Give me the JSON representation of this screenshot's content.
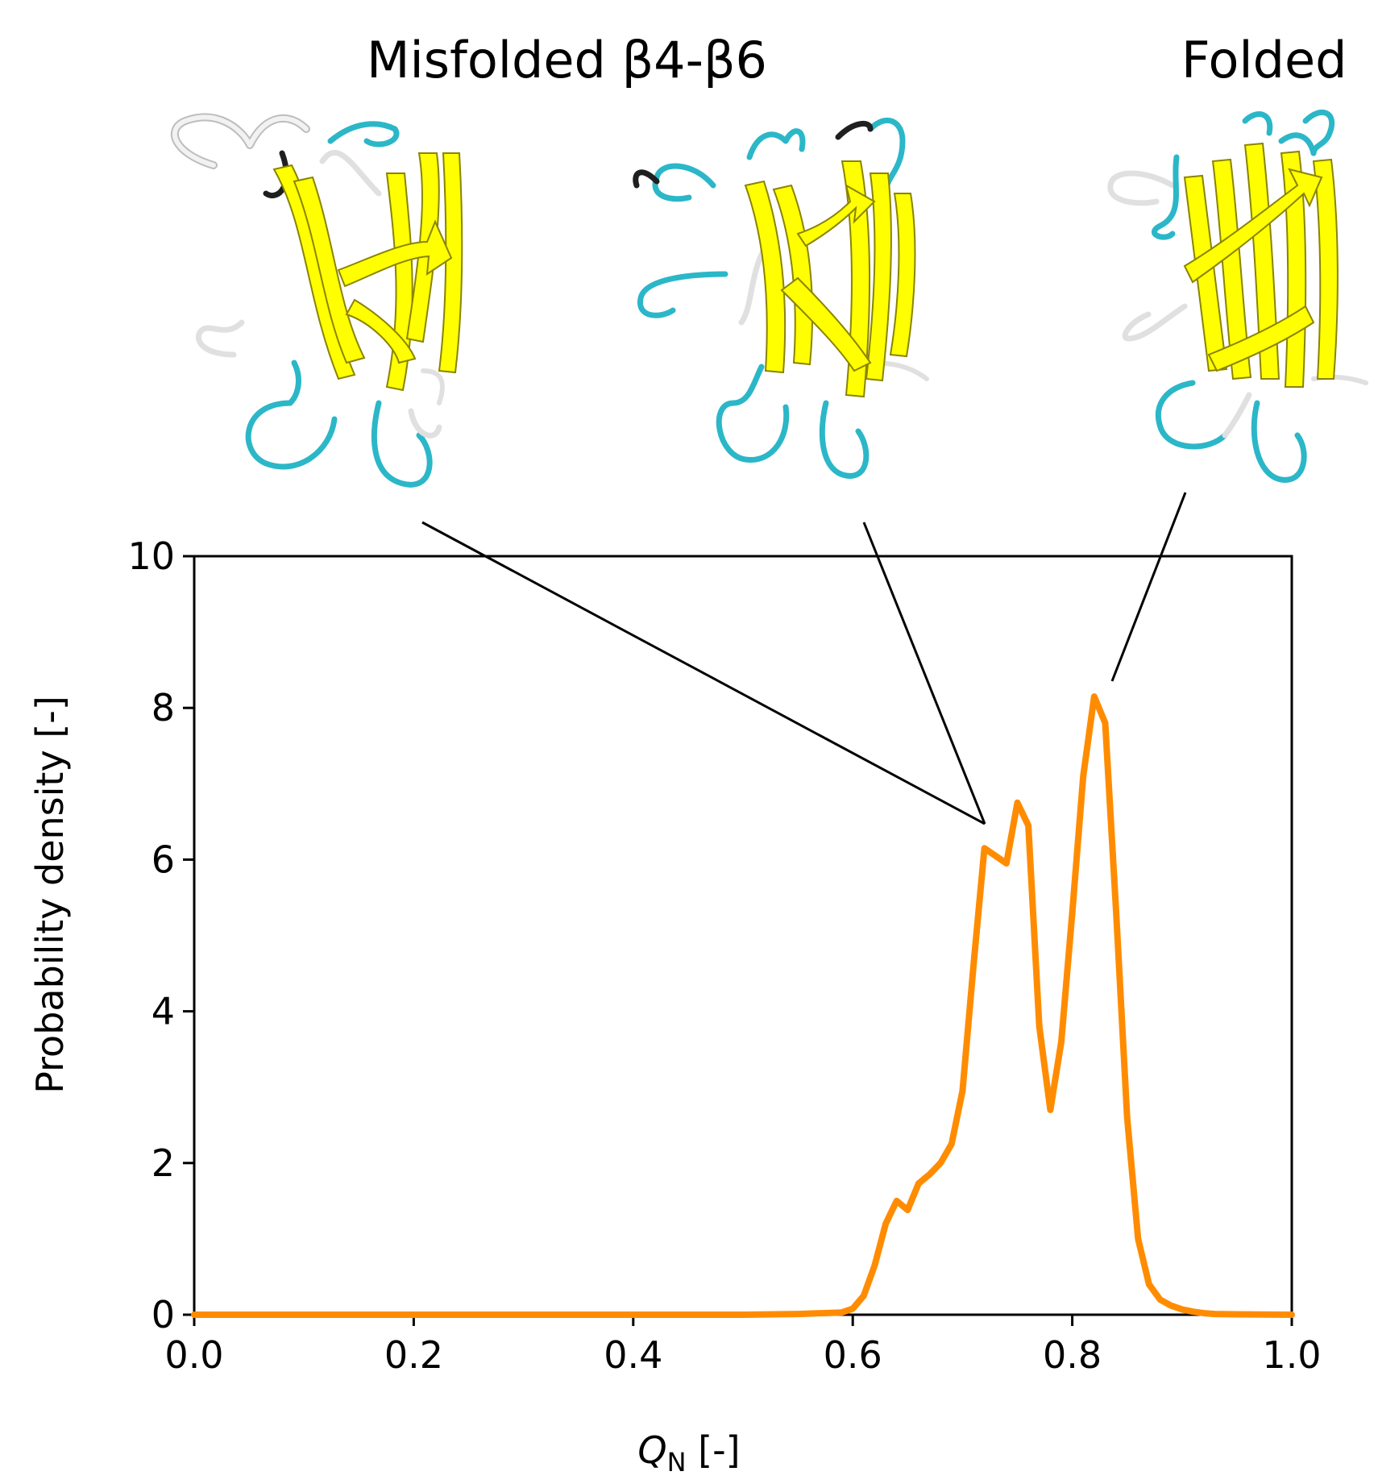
{
  "annotations": {
    "misfolded_label": "Misfolded β4-β6",
    "folded_label": "Folded"
  },
  "colors": {
    "curve": "#ff8c00",
    "strand": "#ffff00",
    "turn": "#2bb7c8",
    "coil": "#e0e0e0"
  },
  "chart_data": {
    "type": "line",
    "xlabel": {
      "symbol": "Q",
      "subscript": "N",
      "unit": "[-]"
    },
    "ylabel": "Probability density [-]",
    "xlim": [
      0.0,
      1.0
    ],
    "ylim": [
      0,
      10
    ],
    "xticks": [
      "0.0",
      "0.2",
      "0.4",
      "0.6",
      "0.8",
      "1.0"
    ],
    "yticks": [
      "0",
      "2",
      "4",
      "6",
      "8",
      "10"
    ],
    "grid": false,
    "series": [
      {
        "x": [
          0.0,
          0.1,
          0.2,
          0.3,
          0.4,
          0.5,
          0.55,
          0.59,
          0.6,
          0.61,
          0.62,
          0.63,
          0.64,
          0.65,
          0.66,
          0.67,
          0.68,
          0.69,
          0.7,
          0.71,
          0.72,
          0.73,
          0.74,
          0.75,
          0.76,
          0.77,
          0.78,
          0.79,
          0.8,
          0.81,
          0.82,
          0.83,
          0.84,
          0.85,
          0.86,
          0.87,
          0.88,
          0.89,
          0.9,
          0.91,
          0.92,
          0.93,
          0.95,
          1.0
        ],
        "y": [
          0.0,
          0.0,
          0.0,
          0.0,
          0.0,
          0.0,
          0.01,
          0.03,
          0.08,
          0.25,
          0.65,
          1.2,
          1.5,
          1.38,
          1.73,
          1.85,
          2.0,
          2.25,
          2.95,
          4.6,
          6.15,
          6.05,
          5.95,
          6.75,
          6.45,
          3.8,
          2.7,
          3.6,
          5.3,
          7.1,
          8.15,
          7.8,
          5.3,
          2.6,
          1.0,
          0.4,
          0.2,
          0.12,
          0.07,
          0.04,
          0.02,
          0.01,
          0.005,
          0.0
        ]
      }
    ]
  }
}
